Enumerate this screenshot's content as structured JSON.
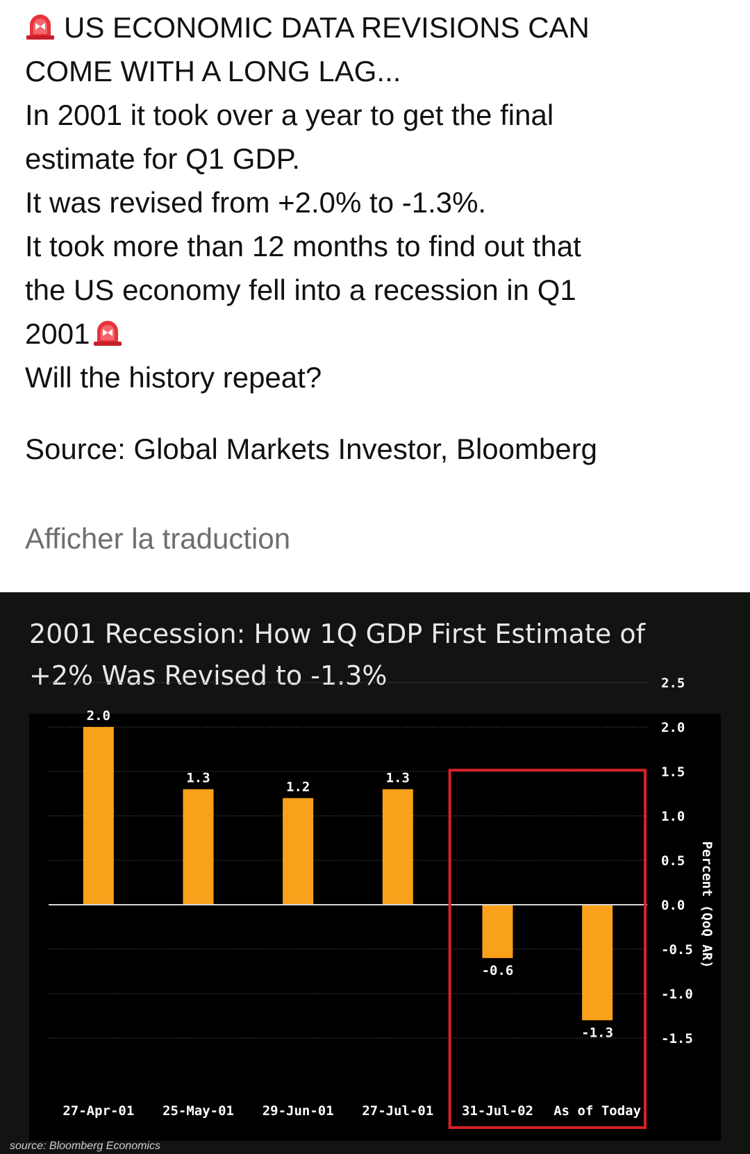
{
  "post": {
    "headline_line1": "US ECONOMIC DATA REVISIONS CAN",
    "headline_line2": "COME WITH A LONG LAG...",
    "body_line1": "In 2001 it took over a year to get the final",
    "body_line2": "estimate for Q1 GDP.",
    "body_line3": "It was revised from +2.0% to -1.3%.",
    "body_line4": "It took more than 12 months to find out that",
    "body_line5": "the US economy fell into a recession in Q1",
    "body_line6": "2001",
    "body_line7": "Will the history repeat?",
    "source": "Source: Global Markets Investor, Bloomberg",
    "translate_link": "Afficher la traduction",
    "icons": [
      "siren-icon",
      "siren-icon"
    ]
  },
  "chart_data": {
    "type": "bar",
    "title_line1": "2001 Recession: How 1Q GDP First Estimate of",
    "title_line2": "+2% Was Revised to -1.3%",
    "categories": [
      "27-Apr-01",
      "25-May-01",
      "29-Jun-01",
      "27-Jul-01",
      "31-Jul-02",
      "As of Today"
    ],
    "values": [
      2.0,
      1.3,
      1.2,
      1.3,
      -0.6,
      -1.3
    ],
    "value_labels": [
      "2.0",
      "1.3",
      "1.2",
      "1.3",
      "-0.6",
      "-1.3"
    ],
    "ylabel": "Percent (QoQ AR)",
    "yticks": [
      "2.5",
      "2.0",
      "1.5",
      "1.0",
      "0.5",
      "0.0",
      "-0.5",
      "-1.0",
      "-1.5"
    ],
    "ylim": [
      -1.5,
      2.5
    ],
    "y_axis_side": "right",
    "grid": true,
    "highlighted_categories": [
      "31-Jul-02",
      "As of Today"
    ],
    "source_note": "source: Bloomberg Economics",
    "colors": {
      "bar": "#f9a11b",
      "highlight_box": "#d62128",
      "background": "#000000",
      "panel": "#111411",
      "text": "#ffffff"
    }
  }
}
